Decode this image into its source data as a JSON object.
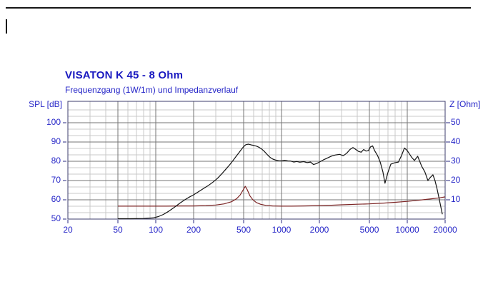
{
  "chart_data": {
    "type": "line",
    "title": "VISATON K 45 - 8 Ohm",
    "subtitle": "Frequenzgang (1W/1m) und Impedanzverlauf",
    "grid": true,
    "legend": "none",
    "x_axis": {
      "scale": "log",
      "unit": "Hz",
      "range": [
        20,
        20000
      ],
      "ticks": [
        20,
        50,
        100,
        200,
        500,
        1000,
        2000,
        5000,
        10000,
        20000
      ],
      "minor_gridlines": [
        30,
        40,
        60,
        70,
        80,
        90,
        300,
        400,
        600,
        700,
        800,
        900,
        3000,
        4000,
        6000,
        7000,
        8000,
        9000
      ]
    },
    "y_left": {
      "label": "SPL [dB]",
      "range": [
        50,
        111
      ],
      "ticks": [
        100,
        90,
        80,
        70,
        60,
        50
      ],
      "major_gridlines": [
        60,
        70,
        80,
        90,
        100
      ],
      "minor_gridlines": [
        53.3,
        56.7,
        63.3,
        66.7,
        73.3,
        76.7,
        83.3,
        86.7,
        93.3,
        96.7,
        103.3,
        106.7
      ]
    },
    "y_right": {
      "label": "Z [Ohm]",
      "range": [
        0,
        61
      ],
      "ticks": [
        50,
        40,
        30,
        20,
        10
      ]
    },
    "series": [
      {
        "name": "Frequenzgang SPL",
        "axis": "left",
        "color": "#141414",
        "points": [
          [
            50,
            50.2
          ],
          [
            63,
            50.2
          ],
          [
            80,
            50.3
          ],
          [
            95,
            50.6
          ],
          [
            105,
            51.3
          ],
          [
            115,
            52.4
          ],
          [
            125,
            53.8
          ],
          [
            140,
            56.0
          ],
          [
            155,
            58.2
          ],
          [
            170,
            60.0
          ],
          [
            185,
            61.4
          ],
          [
            200,
            62.6
          ],
          [
            220,
            64.3
          ],
          [
            240,
            65.9
          ],
          [
            260,
            67.3
          ],
          [
            285,
            69.2
          ],
          [
            310,
            71.2
          ],
          [
            335,
            73.5
          ],
          [
            360,
            75.8
          ],
          [
            385,
            78.0
          ],
          [
            410,
            80.3
          ],
          [
            435,
            82.5
          ],
          [
            460,
            84.6
          ],
          [
            480,
            86.2
          ],
          [
            500,
            87.6
          ],
          [
            520,
            88.6
          ],
          [
            545,
            88.9
          ],
          [
            575,
            88.5
          ],
          [
            605,
            88.2
          ],
          [
            635,
            87.8
          ],
          [
            665,
            87.2
          ],
          [
            700,
            86.2
          ],
          [
            730,
            85.1
          ],
          [
            760,
            83.9
          ],
          [
            790,
            82.7
          ],
          [
            820,
            81.8
          ],
          [
            855,
            81.1
          ],
          [
            900,
            80.6
          ],
          [
            950,
            80.3
          ],
          [
            1000,
            80.2
          ],
          [
            1060,
            80.5
          ],
          [
            1120,
            80.2
          ],
          [
            1180,
            80.1
          ],
          [
            1250,
            79.6
          ],
          [
            1320,
            79.9
          ],
          [
            1400,
            79.5
          ],
          [
            1500,
            79.8
          ],
          [
            1600,
            79.3
          ],
          [
            1700,
            79.6
          ],
          [
            1800,
            78.3
          ],
          [
            1900,
            78.8
          ],
          [
            2000,
            79.6
          ],
          [
            2150,
            80.7
          ],
          [
            2300,
            81.6
          ],
          [
            2500,
            82.7
          ],
          [
            2700,
            83.3
          ],
          [
            2900,
            83.6
          ],
          [
            3100,
            82.9
          ],
          [
            3300,
            84.2
          ],
          [
            3500,
            86.1
          ],
          [
            3700,
            87.1
          ],
          [
            3900,
            86.1
          ],
          [
            4100,
            85.1
          ],
          [
            4300,
            84.7
          ],
          [
            4500,
            86.1
          ],
          [
            4700,
            85.3
          ],
          [
            4900,
            85.5
          ],
          [
            5100,
            87.5
          ],
          [
            5300,
            88.0
          ],
          [
            5500,
            85.5
          ],
          [
            5800,
            83.0
          ],
          [
            6100,
            79.5
          ],
          [
            6400,
            74.5
          ],
          [
            6650,
            68.6
          ],
          [
            7000,
            74.0
          ],
          [
            7400,
            78.5
          ],
          [
            7900,
            79.2
          ],
          [
            8500,
            79.6
          ],
          [
            9000,
            83.0
          ],
          [
            9500,
            86.9
          ],
          [
            10000,
            85.5
          ],
          [
            10800,
            82.2
          ],
          [
            11400,
            80.4
          ],
          [
            12100,
            82.6
          ],
          [
            13000,
            77.5
          ],
          [
            13800,
            74.5
          ],
          [
            14600,
            70.0
          ],
          [
            15200,
            71.5
          ],
          [
            16000,
            73.0
          ],
          [
            16600,
            70.0
          ],
          [
            17200,
            66.0
          ],
          [
            17800,
            61.5
          ],
          [
            18400,
            57.0
          ],
          [
            19000,
            52.5
          ]
        ]
      },
      {
        "name": "Impedanzverlauf",
        "axis": "right",
        "color": "#7c2424",
        "points": [
          [
            50,
            6.7
          ],
          [
            80,
            6.7
          ],
          [
            120,
            6.7
          ],
          [
            160,
            6.8
          ],
          [
            200,
            6.8
          ],
          [
            250,
            7.0
          ],
          [
            300,
            7.3
          ],
          [
            350,
            7.9
          ],
          [
            400,
            9.0
          ],
          [
            440,
            10.6
          ],
          [
            470,
            12.6
          ],
          [
            495,
            15.1
          ],
          [
            515,
            17.0
          ],
          [
            535,
            15.1
          ],
          [
            560,
            12.1
          ],
          [
            590,
            10.1
          ],
          [
            630,
            8.6
          ],
          [
            680,
            7.7
          ],
          [
            750,
            7.1
          ],
          [
            850,
            6.8
          ],
          [
            1000,
            6.7
          ],
          [
            1200,
            6.7
          ],
          [
            1500,
            6.8
          ],
          [
            2000,
            7.0
          ],
          [
            2500,
            7.2
          ],
          [
            3000,
            7.4
          ],
          [
            4000,
            7.7
          ],
          [
            5000,
            7.9
          ],
          [
            6500,
            8.3
          ],
          [
            8000,
            8.7
          ],
          [
            10000,
            9.2
          ],
          [
            12000,
            9.7
          ],
          [
            14000,
            10.2
          ],
          [
            16000,
            10.6
          ],
          [
            18000,
            11.0
          ],
          [
            20000,
            11.5
          ]
        ]
      }
    ],
    "colors": {
      "title": "#1a1ac0",
      "label": "#2626c8",
      "grid_minor": "#c8c8c8",
      "grid_major": "#757575",
      "axis_frame": "#3c3c6c",
      "tick_mark": "#2a2a80",
      "background": "#ffffff"
    }
  }
}
